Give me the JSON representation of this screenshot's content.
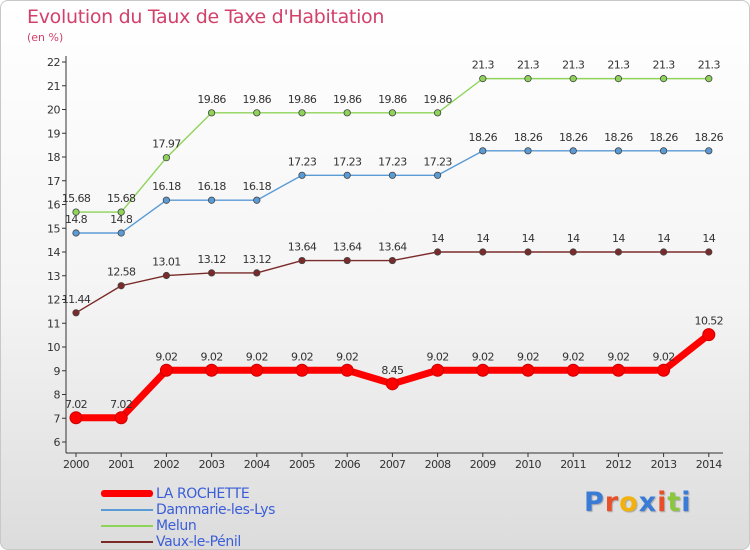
{
  "title": "Evolution du Taux de Taxe d'Habitation",
  "unit_label": "(en %)",
  "logo": {
    "letters": [
      "P",
      "r",
      "o",
      "x",
      "i",
      "t",
      "i"
    ],
    "colors": [
      "#3a7bd5",
      "#e8502a",
      "#f2b10c",
      "#3a7bd5",
      "#e8502a",
      "#8cc63f",
      "#3a7bd5"
    ]
  },
  "chart_data": {
    "type": "line",
    "title": "Evolution du Taux de Taxe d'Habitation",
    "ylabel": "(en %)",
    "x": [
      "2000",
      "2001",
      "2002",
      "2003",
      "2004",
      "2005",
      "2006",
      "2007",
      "2008",
      "2009",
      "2010",
      "2011",
      "2012",
      "2013",
      "2014"
    ],
    "ylim": [
      6,
      22
    ],
    "yticks": [
      6,
      7,
      8,
      9,
      10,
      11,
      12,
      13,
      14,
      15,
      16,
      17,
      18,
      19,
      20,
      21,
      22
    ],
    "grid": false,
    "legend_position": "bottom-left",
    "series": [
      {
        "name": "LA ROCHETTE",
        "color": "#ff0000",
        "emphasis": true,
        "values": [
          7.02,
          7.02,
          9.02,
          9.02,
          9.02,
          9.02,
          9.02,
          8.45,
          9.02,
          9.02,
          9.02,
          9.02,
          9.02,
          9.02,
          10.52
        ],
        "labels": [
          "7.02",
          "7.02",
          "9.02",
          "9.02",
          "9.02",
          "9.02",
          "9.02",
          "8.45",
          "9.02",
          "9.02",
          "9.02",
          "9.02",
          "9.02",
          "9.02",
          "10.52"
        ]
      },
      {
        "name": "Dammarie-les-Lys",
        "color": "#5b9bd5",
        "emphasis": false,
        "values": [
          14.8,
          14.8,
          16.18,
          16.18,
          16.18,
          17.23,
          17.23,
          17.23,
          17.23,
          18.26,
          18.26,
          18.26,
          18.26,
          18.26,
          18.26
        ],
        "labels": [
          "14.8",
          "14.8",
          "16.18",
          "16.18",
          "16.18",
          "17.23",
          "17.23",
          "17.23",
          "17.23",
          "18.26",
          "18.26",
          "18.26",
          "18.26",
          "18.26",
          "18.26"
        ]
      },
      {
        "name": "Melun",
        "color": "#8fd45a",
        "emphasis": false,
        "values": [
          15.68,
          15.68,
          17.97,
          19.86,
          19.86,
          19.86,
          19.86,
          19.86,
          19.86,
          21.3,
          21.3,
          21.3,
          21.3,
          21.3,
          21.3
        ],
        "labels": [
          "15.68",
          "15.68",
          "17.97",
          "19.86",
          "19.86",
          "19.86",
          "19.86",
          "19.86",
          "19.86",
          "21.3",
          "21.3",
          "21.3",
          "21.3",
          "21.3",
          "21.3"
        ]
      },
      {
        "name": "Vaux-le-Pénil",
        "color": "#7b2a2a",
        "emphasis": false,
        "values": [
          11.44,
          12.58,
          13.01,
          13.12,
          13.12,
          13.64,
          13.64,
          13.64,
          14,
          14,
          14,
          14,
          14,
          14,
          14
        ],
        "labels": [
          "11.44",
          "12.58",
          "13.01",
          "13.12",
          "13.12",
          "13.64",
          "13.64",
          "13.64",
          "14",
          "14",
          "14",
          "14",
          "14",
          "14",
          "14"
        ]
      }
    ]
  }
}
